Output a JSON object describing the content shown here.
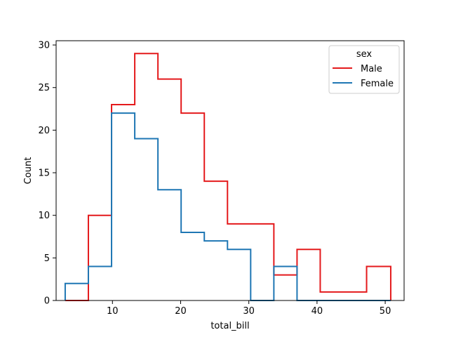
{
  "chart_data": {
    "type": "histogram-step",
    "title": "",
    "xlabel": "total_bill",
    "ylabel": "Count",
    "xlim": [
      1.74,
      52.77
    ],
    "ylim": [
      0,
      30.5
    ],
    "xticks": [
      10,
      20,
      30,
      40,
      50
    ],
    "yticks": [
      0,
      5,
      10,
      15,
      20,
      25,
      30
    ],
    "bin_edges": [
      3.07,
      6.47,
      9.87,
      13.27,
      16.67,
      20.07,
      23.47,
      26.87,
      30.27,
      33.67,
      37.07,
      40.47,
      43.87,
      47.27,
      50.81
    ],
    "legend": {
      "title": "sex",
      "position": "top-right"
    },
    "series": [
      {
        "name": "Male",
        "color": "#e41a1c",
        "values": [
          0,
          10,
          23,
          29,
          26,
          22,
          14,
          9,
          9,
          3,
          6,
          1,
          1,
          4
        ]
      },
      {
        "name": "Female",
        "color": "#1f77b4",
        "values": [
          2,
          4,
          22,
          19,
          13,
          8,
          7,
          6,
          0,
          4,
          0,
          0,
          0,
          0
        ]
      }
    ]
  }
}
